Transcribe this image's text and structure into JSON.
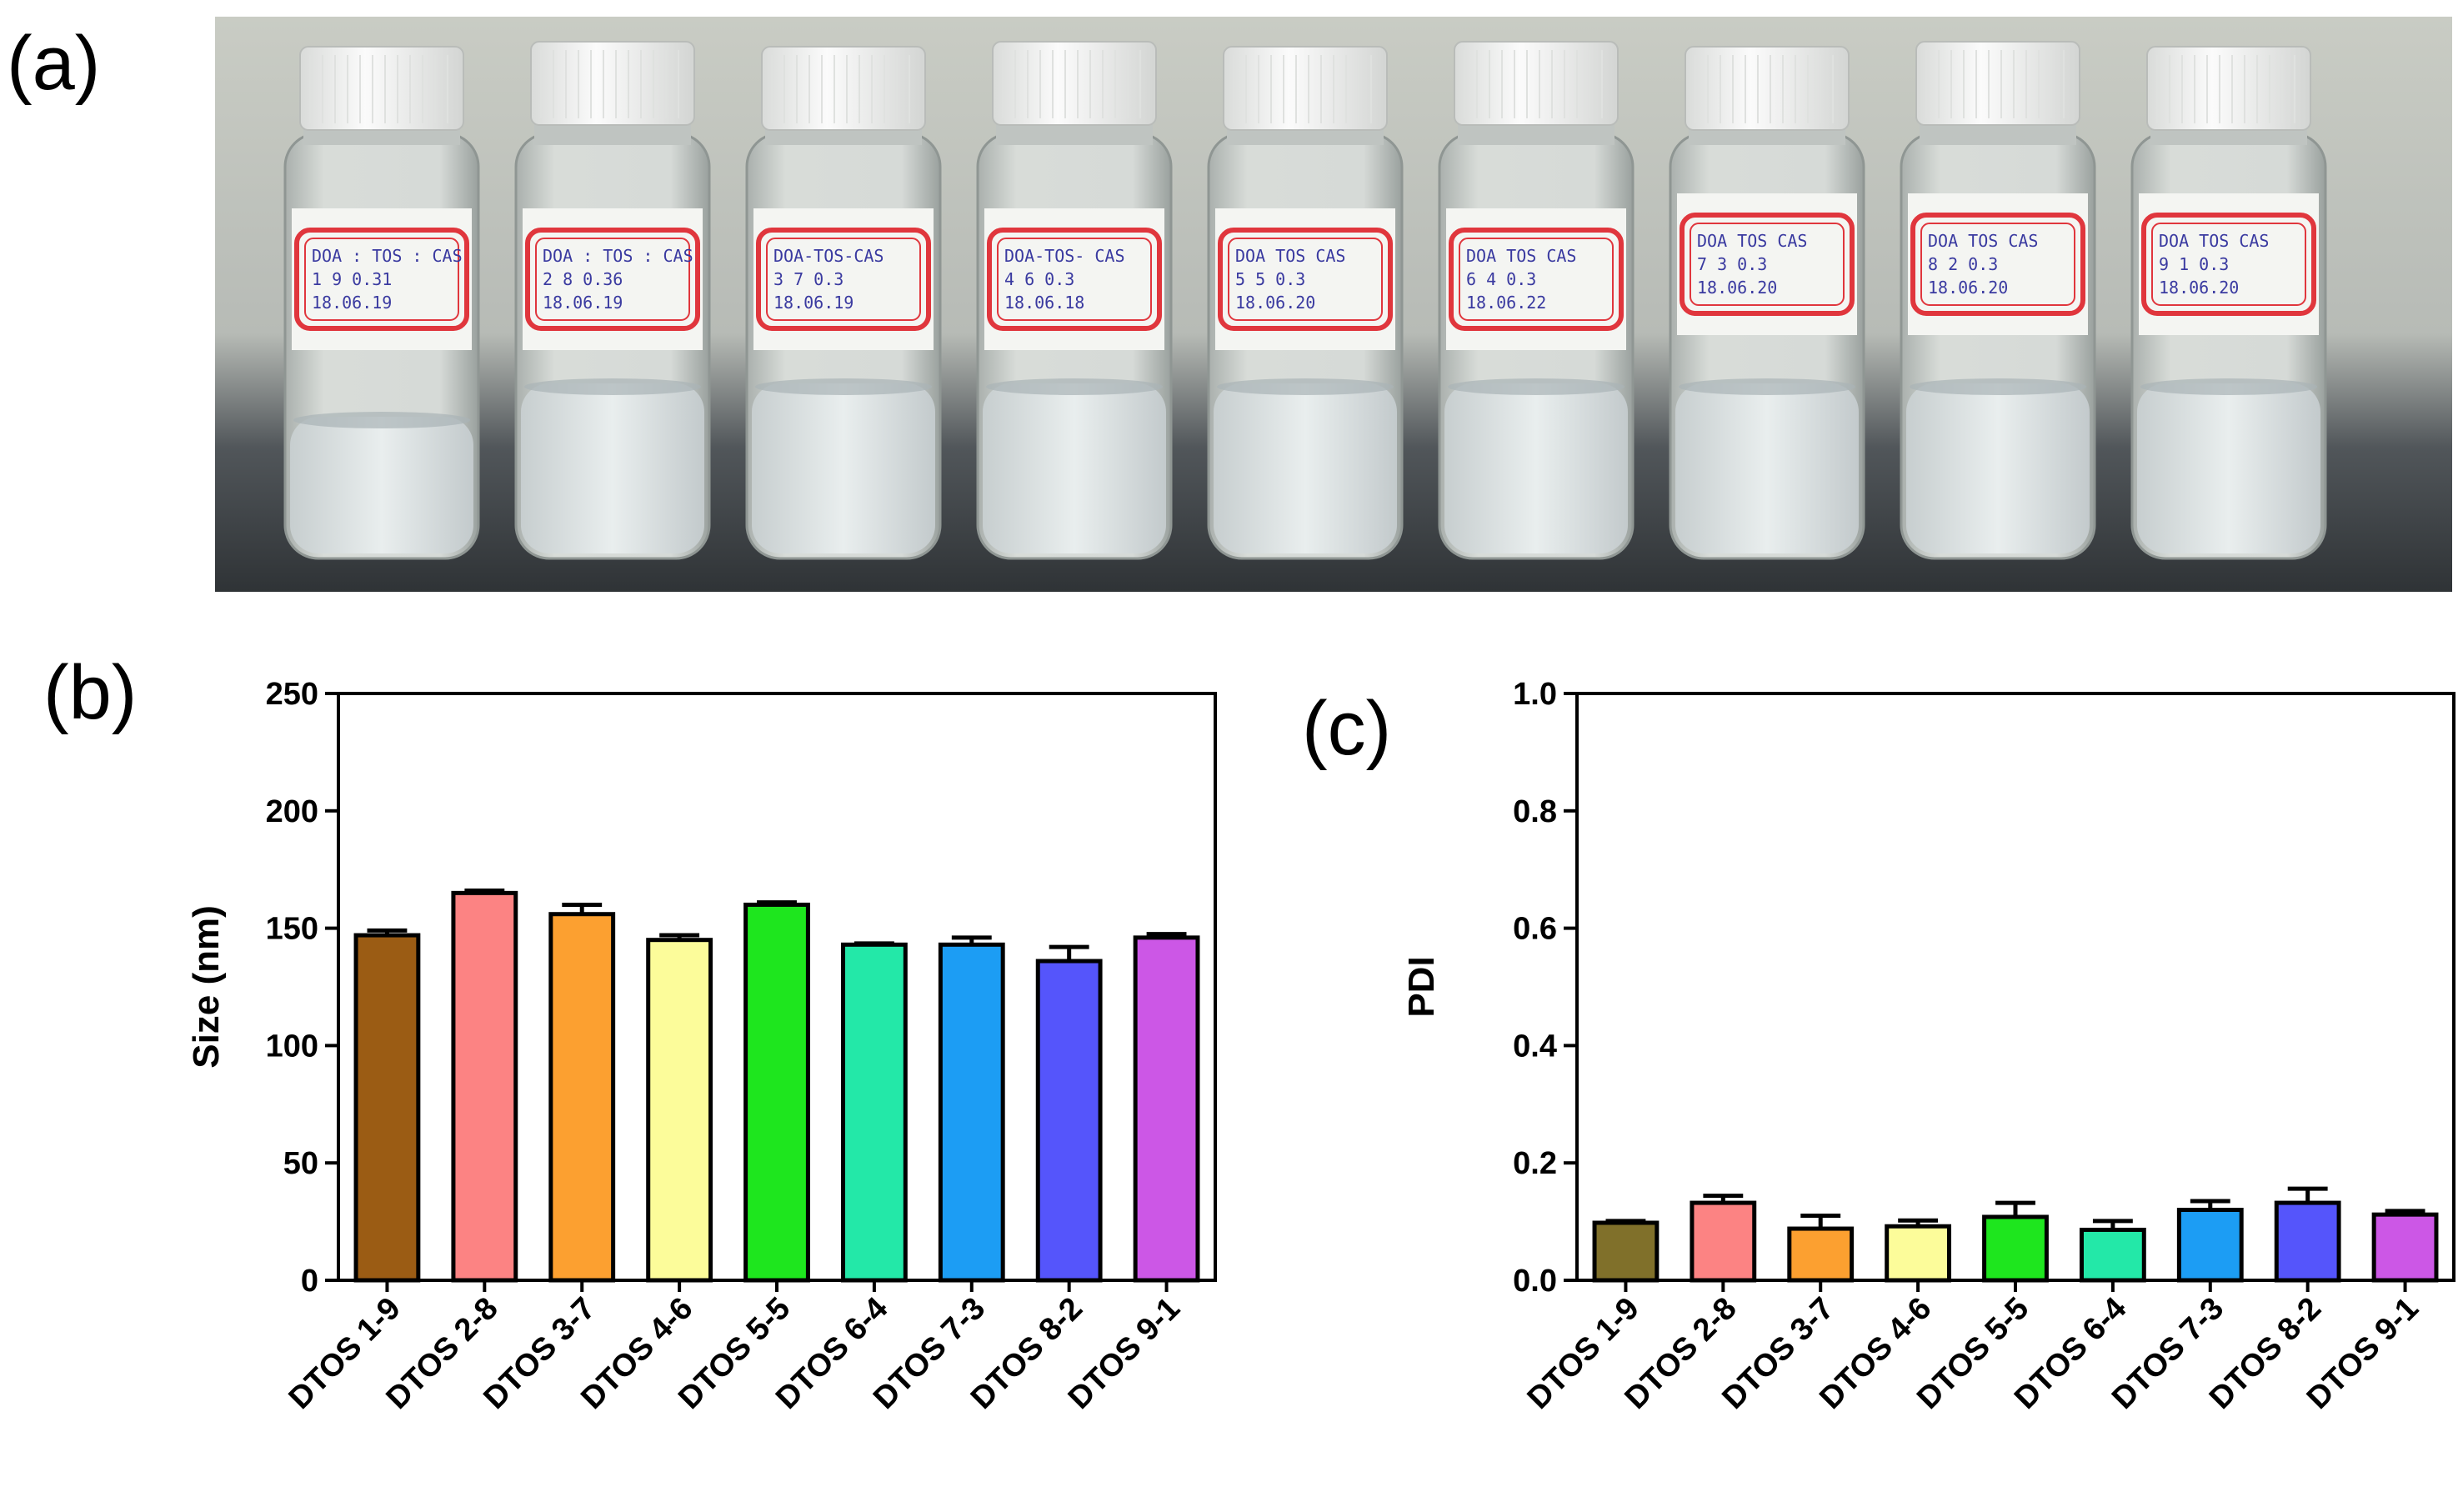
{
  "panels": {
    "a": "(a)",
    "b": "(b)",
    "c": "(c)"
  },
  "photo": {
    "vial_labels": [
      [
        "DOA : TOS : CAS",
        "1   9   0.31",
        "18.06.19"
      ],
      [
        "DOA : TOS : CAS",
        "2   8   0.36",
        "18.06.19"
      ],
      [
        "DOA-TOS-CAS",
        "3   7   0.3",
        "18.06.19"
      ],
      [
        "DOA-TOS- CAS",
        "4   6   0.3",
        "18.06.18"
      ],
      [
        "DOA  TOS  CAS",
        "5   5   0.3",
        "18.06.20"
      ],
      [
        "DOA  TOS  CAS",
        "6   4   0.3",
        "18.06.22"
      ],
      [
        "DOA  TOS  CAS",
        "7   3   0.3",
        "18.06.20"
      ],
      [
        "DOA  TOS  CAS",
        "8   2   0.3",
        "18.06.20"
      ],
      [
        "DOA  TOS  CAS",
        "9   1   0.3",
        "18.06.20"
      ]
    ]
  },
  "chart_data": [
    {
      "id": "b",
      "type": "bar",
      "title": "",
      "xlabel": "",
      "ylabel": "Size (nm)",
      "ylim": [
        0,
        250
      ],
      "yticks": [
        "0",
        "50",
        "100",
        "150",
        "200",
        "250"
      ],
      "categories": [
        "DTOS 1-9",
        "DTOS 2-8",
        "DTOS 3-7",
        "DTOS 4-6",
        "DTOS 5-5",
        "DTOS 6-4",
        "DTOS 7-3",
        "DTOS 8-2",
        "DTOS 9-1"
      ],
      "values": [
        147,
        165,
        156,
        145,
        160,
        143,
        143,
        136,
        146
      ],
      "errors": [
        2,
        1,
        4,
        2,
        1,
        0.5,
        3,
        6,
        1.5
      ],
      "colors": [
        "#9b5c14",
        "#fc8383",
        "#fca030",
        "#fcfc9a",
        "#1ee61e",
        "#23e8a8",
        "#1c9df4",
        "#5555fb",
        "#cc57e6"
      ]
    },
    {
      "id": "c",
      "type": "bar",
      "title": "",
      "xlabel": "",
      "ylabel": "PDI",
      "ylim": [
        0,
        1.0
      ],
      "yticks": [
        "0.0",
        "0.2",
        "0.4",
        "0.6",
        "0.8",
        "1.0"
      ],
      "categories": [
        "DTOS 1-9",
        "DTOS 2-8",
        "DTOS 3-7",
        "DTOS 4-6",
        "DTOS 5-5",
        "DTOS 6-4",
        "DTOS 7-3",
        "DTOS 8-2",
        "DTOS 9-1"
      ],
      "values": [
        0.098,
        0.132,
        0.088,
        0.092,
        0.108,
        0.086,
        0.12,
        0.132,
        0.112
      ],
      "errors": [
        0.003,
        0.012,
        0.022,
        0.01,
        0.024,
        0.015,
        0.015,
        0.024,
        0.006
      ],
      "colors": [
        "#80702a",
        "#fc8383",
        "#fca030",
        "#fcfc9a",
        "#1ee61e",
        "#23e8a8",
        "#1c9df4",
        "#5555fb",
        "#cc57e6"
      ]
    }
  ]
}
